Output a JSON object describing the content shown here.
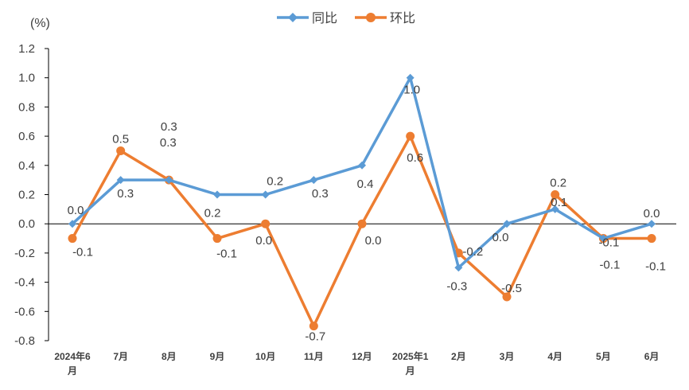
{
  "chart_data": {
    "type": "line",
    "ylabel": "(%)",
    "categories": [
      "2024年6月",
      "7月",
      "8月",
      "9月",
      "10月",
      "11月",
      "12月",
      "2025年1月",
      "2月",
      "3月",
      "4月",
      "5月",
      "6月"
    ],
    "ylim": [
      -0.8,
      1.2
    ],
    "yticks": [
      "1.2",
      "1.0",
      "0.8",
      "0.6",
      "0.4",
      "0.2",
      "0.0",
      "-0.2",
      "-0.4",
      "-0.6",
      "-0.8"
    ],
    "grid": false,
    "legend": "top",
    "series": [
      {
        "name": "同比",
        "color": "#5B9BD5",
        "marker": "diamond",
        "values": [
          0.0,
          0.3,
          0.3,
          0.2,
          0.2,
          0.3,
          0.4,
          1.0,
          -0.3,
          0.0,
          0.1,
          -0.1,
          0.0
        ],
        "labels": [
          "0.0",
          "0.3",
          "0.3",
          "0.2",
          "0.2",
          "0.3",
          "0.4",
          "1.0",
          "-0.3",
          "0.0",
          "0.1",
          "-0.1",
          "0.0"
        ]
      },
      {
        "name": "环比",
        "color": "#ED7D31",
        "marker": "circle",
        "values": [
          -0.1,
          0.5,
          0.3,
          -0.1,
          0.0,
          -0.7,
          0.0,
          0.6,
          -0.2,
          -0.5,
          0.2,
          -0.1,
          -0.1
        ],
        "labels": [
          "-0.1",
          "0.5",
          "0.3",
          "-0.1",
          "0.0",
          "-0.7",
          "0.0",
          "0.6",
          "-0.2",
          "-0.5",
          "0.2",
          "-0.1",
          "-0.1"
        ]
      }
    ]
  }
}
